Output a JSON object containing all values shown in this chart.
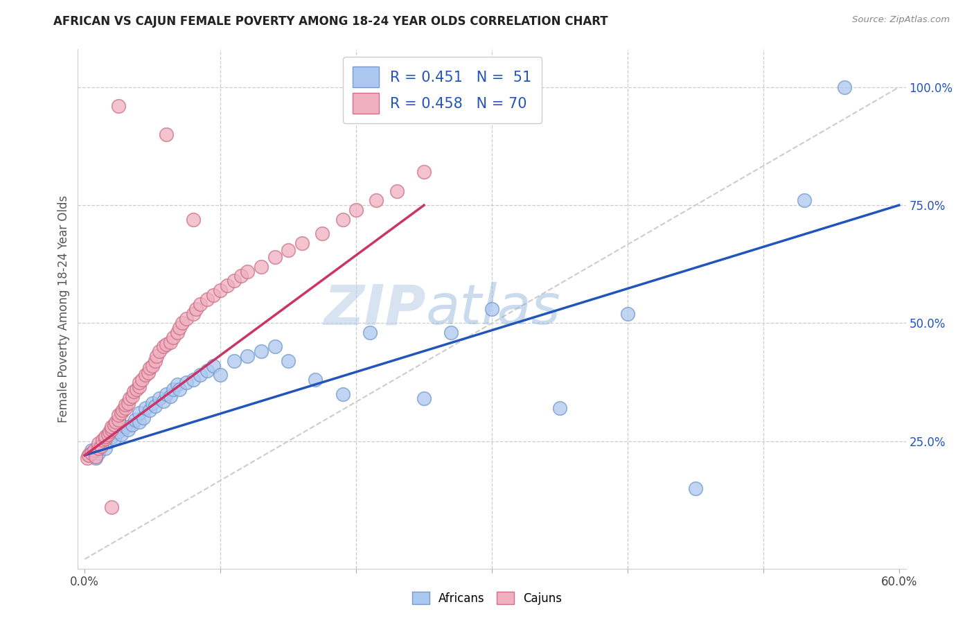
{
  "title": "AFRICAN VS CAJUN FEMALE POVERTY AMONG 18-24 YEAR OLDS CORRELATION CHART",
  "source": "Source: ZipAtlas.com",
  "ylabel": "Female Poverty Among 18-24 Year Olds",
  "ytick_labels": [
    "25.0%",
    "50.0%",
    "75.0%",
    "100.0%"
  ],
  "ytick_values": [
    0.25,
    0.5,
    0.75,
    1.0
  ],
  "xlim": [
    -0.005,
    0.605
  ],
  "ylim": [
    -0.02,
    1.08
  ],
  "africans_color_face": "#adc8f0",
  "africans_color_edge": "#7499cc",
  "cajuns_color_face": "#f0b0c0",
  "cajuns_color_edge": "#cc7088",
  "trend_african_color": "#2255bb",
  "trend_cajun_color": "#cc3366",
  "diagonal_color": "#cccccc",
  "background_color": "#ffffff",
  "grid_color": "#cccccc",
  "watermark_zip": "ZIP",
  "watermark_atlas": "atlas",
  "R_african": 0.451,
  "N_african": 51,
  "R_cajun": 0.458,
  "N_cajun": 70,
  "africans_x": [
    0.003,
    0.005,
    0.008,
    0.01,
    0.012,
    0.015,
    0.018,
    0.02,
    0.022,
    0.025,
    0.027,
    0.03,
    0.032,
    0.035,
    0.037,
    0.04,
    0.04,
    0.043,
    0.045,
    0.048,
    0.05,
    0.052,
    0.055,
    0.058,
    0.06,
    0.063,
    0.065,
    0.068,
    0.07,
    0.075,
    0.08,
    0.085,
    0.09,
    0.095,
    0.1,
    0.11,
    0.12,
    0.13,
    0.14,
    0.15,
    0.17,
    0.19,
    0.21,
    0.25,
    0.27,
    0.3,
    0.35,
    0.4,
    0.45,
    0.53,
    0.56
  ],
  "africans_y": [
    0.22,
    0.23,
    0.215,
    0.225,
    0.24,
    0.235,
    0.25,
    0.26,
    0.255,
    0.27,
    0.265,
    0.28,
    0.275,
    0.285,
    0.295,
    0.29,
    0.31,
    0.3,
    0.32,
    0.315,
    0.33,
    0.325,
    0.34,
    0.335,
    0.35,
    0.345,
    0.36,
    0.37,
    0.36,
    0.375,
    0.38,
    0.39,
    0.4,
    0.41,
    0.39,
    0.42,
    0.43,
    0.44,
    0.45,
    0.42,
    0.38,
    0.35,
    0.48,
    0.34,
    0.48,
    0.53,
    0.32,
    0.52,
    0.15,
    0.76,
    1.0
  ],
  "cajuns_x": [
    0.002,
    0.003,
    0.005,
    0.007,
    0.008,
    0.01,
    0.01,
    0.012,
    0.013,
    0.015,
    0.015,
    0.017,
    0.018,
    0.02,
    0.02,
    0.022,
    0.023,
    0.025,
    0.025,
    0.027,
    0.028,
    0.03,
    0.03,
    0.032,
    0.033,
    0.035,
    0.036,
    0.038,
    0.04,
    0.04,
    0.042,
    0.045,
    0.047,
    0.048,
    0.05,
    0.052,
    0.053,
    0.055,
    0.058,
    0.06,
    0.063,
    0.065,
    0.068,
    0.07,
    0.072,
    0.075,
    0.08,
    0.082,
    0.085,
    0.09,
    0.095,
    0.1,
    0.105,
    0.11,
    0.115,
    0.12,
    0.13,
    0.14,
    0.15,
    0.16,
    0.175,
    0.19,
    0.2,
    0.215,
    0.23,
    0.25,
    0.08,
    0.06,
    0.025,
    0.02
  ],
  "cajuns_y": [
    0.215,
    0.22,
    0.225,
    0.23,
    0.218,
    0.235,
    0.245,
    0.24,
    0.252,
    0.255,
    0.26,
    0.265,
    0.27,
    0.275,
    0.28,
    0.285,
    0.29,
    0.295,
    0.305,
    0.31,
    0.315,
    0.32,
    0.328,
    0.33,
    0.34,
    0.345,
    0.355,
    0.36,
    0.365,
    0.375,
    0.38,
    0.39,
    0.395,
    0.405,
    0.41,
    0.42,
    0.43,
    0.44,
    0.45,
    0.455,
    0.46,
    0.47,
    0.48,
    0.49,
    0.5,
    0.51,
    0.52,
    0.53,
    0.54,
    0.55,
    0.56,
    0.57,
    0.58,
    0.59,
    0.6,
    0.61,
    0.62,
    0.64,
    0.655,
    0.67,
    0.69,
    0.72,
    0.74,
    0.76,
    0.78,
    0.82,
    0.72,
    0.9,
    0.96,
    0.11
  ],
  "trend_african_x0": 0.0,
  "trend_african_x1": 0.6,
  "trend_african_y0": 0.22,
  "trend_african_y1": 0.75,
  "trend_cajun_x0": 0.0,
  "trend_cajun_x1": 0.25,
  "trend_cajun_y0": 0.22,
  "trend_cajun_y1": 0.75
}
